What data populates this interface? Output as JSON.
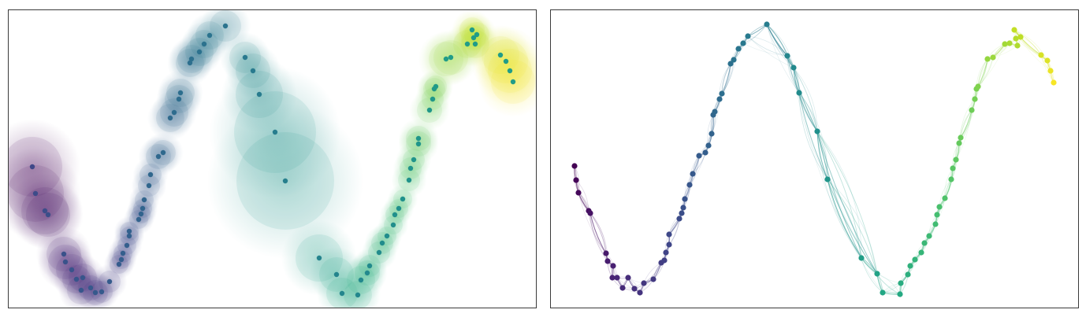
{
  "chart_data": [
    {
      "type": "scatter",
      "title": "",
      "xlabel": "",
      "ylabel": "",
      "xlim": [
        0,
        671
      ],
      "ylim": [
        380,
        0
      ],
      "grid": false,
      "legend": "none",
      "colormap": "viridis",
      "series": [
        {
          "points": [
            [
              30,
              181,
              0.0,
              38
            ],
            [
              34,
              147,
              0.02,
              36
            ],
            [
              46,
              125,
              0.04,
              30
            ],
            [
              50,
              120,
              0.05,
              28
            ],
            [
              70,
              70,
              0.08,
              22
            ],
            [
              72,
              60,
              0.09,
              22
            ],
            [
              80,
              50,
              0.1,
              20
            ],
            [
              86,
              38,
              0.11,
              18
            ],
            [
              94,
              40,
              0.12,
              18
            ],
            [
              92,
              24,
              0.13,
              18
            ],
            [
              104,
              27,
              0.14,
              16
            ],
            [
              110,
              21,
              0.15,
              16
            ],
            [
              118,
              22,
              0.16,
              14
            ],
            [
              128,
              35,
              0.17,
              14
            ],
            [
              140,
              57,
              0.18,
              12
            ],
            [
              143,
              63,
              0.19,
              12
            ],
            [
              145,
              71,
              0.2,
              12
            ],
            [
              150,
              81,
              0.21,
              12
            ],
            [
              153,
              93,
              0.22,
              12
            ],
            [
              153,
              99,
              0.23,
              12
            ],
            [
              165,
              114,
              0.24,
              12
            ],
            [
              168,
              121,
              0.25,
              12
            ],
            [
              170,
              128,
              0.26,
              12
            ],
            [
              172,
              139,
              0.27,
              12
            ],
            [
              178,
              157,
              0.28,
              14
            ],
            [
              180,
              171,
              0.29,
              14
            ],
            [
              190,
              194,
              0.3,
              16
            ],
            [
              196,
              199,
              0.31,
              16
            ],
            [
              205,
              243,
              0.32,
              18
            ],
            [
              210,
              250,
              0.33,
              18
            ],
            [
              216,
              267,
              0.34,
              18
            ],
            [
              218,
              275,
              0.35,
              18
            ],
            [
              230,
              313,
              0.36,
              18
            ],
            [
              232,
              318,
              0.37,
              18
            ],
            [
              242,
              327,
              0.38,
              18
            ],
            [
              248,
              337,
              0.39,
              18
            ],
            [
              255,
              348,
              0.4,
              18
            ],
            [
              275,
              360,
              0.41,
              20
            ],
            [
              300,
              320,
              0.46,
              20
            ],
            [
              310,
              303,
              0.47,
              22
            ],
            [
              318,
              273,
              0.48,
              30
            ],
            [
              338,
              225,
              0.5,
              52
            ],
            [
              351,
              163,
              0.52,
              62
            ],
            [
              394,
              65,
              0.56,
              30
            ],
            [
              416,
              44,
              0.58,
              22
            ],
            [
              423,
              20,
              0.6,
              20
            ],
            [
              443,
              18,
              0.61,
              18
            ],
            [
              447,
              37,
              0.62,
              18
            ],
            [
              455,
              46,
              0.63,
              16
            ],
            [
              458,
              55,
              0.64,
              14
            ],
            [
              470,
              72,
              0.65,
              14
            ],
            [
              474,
              84,
              0.66,
              14
            ],
            [
              480,
              93,
              0.67,
              12
            ],
            [
              488,
              107,
              0.68,
              12
            ],
            [
              490,
              120,
              0.69,
              12
            ],
            [
              495,
              128,
              0.7,
              12
            ],
            [
              500,
              140,
              0.71,
              12
            ],
            [
              508,
              164,
              0.72,
              14
            ],
            [
              510,
              179,
              0.73,
              14
            ],
            [
              514,
              190,
              0.74,
              14
            ],
            [
              520,
              210,
              0.75,
              16
            ],
            [
              520,
              217,
              0.76,
              16
            ],
            [
              534,
              253,
              0.78,
              16
            ],
            [
              538,
              267,
              0.79,
              14
            ],
            [
              540,
              280,
              0.8,
              14
            ],
            [
              542,
              283,
              0.81,
              14
            ],
            [
              555,
              318,
              0.84,
              22
            ],
            [
              561,
              320,
              0.85,
              22
            ],
            [
              582,
              337,
              0.87,
              18
            ],
            [
              592,
              337,
              0.88,
              18
            ],
            [
              590,
              345,
              0.89,
              16
            ],
            [
              594,
              349,
              0.9,
              16
            ],
            [
              588,
              355,
              0.91,
              16
            ],
            [
              624,
              323,
              0.94,
              24
            ],
            [
              631,
              315,
              0.96,
              28
            ],
            [
              636,
              303,
              0.97,
              28
            ],
            [
              640,
              289,
              0.99,
              28
            ]
          ]
        }
      ]
    },
    {
      "type": "line",
      "title": "",
      "xlabel": "",
      "ylabel": "",
      "xlim": [
        0,
        671
      ],
      "ylim": [
        380,
        0
      ],
      "grid": false,
      "legend": "none",
      "colormap": "viridis",
      "series": [
        {
          "points": [
            [
              30,
              182,
              0.0
            ],
            [
              32,
              164,
              0.01
            ],
            [
              35,
              148,
              0.02
            ],
            [
              48,
              125,
              0.04
            ],
            [
              50,
              122,
              0.05
            ],
            [
              70,
              71,
              0.07
            ],
            [
              72,
              61,
              0.08
            ],
            [
              79,
              55,
              0.09
            ],
            [
              78,
              40,
              0.1
            ],
            [
              84,
              40,
              0.11
            ],
            [
              91,
              27,
              0.12
            ],
            [
              98,
              40,
              0.13
            ],
            [
              106,
              26,
              0.14
            ],
            [
              113,
              21,
              0.15
            ],
            [
              118,
              33,
              0.16
            ],
            [
              130,
              38,
              0.17
            ],
            [
              140,
              59,
              0.18
            ],
            [
              144,
              62,
              0.19
            ],
            [
              146,
              72,
              0.2
            ],
            [
              150,
              82,
              0.21
            ],
            [
              150,
              95,
              0.22
            ],
            [
              163,
              115,
              0.23
            ],
            [
              166,
              122,
              0.24
            ],
            [
              168,
              129,
              0.25
            ],
            [
              170,
              140,
              0.26
            ],
            [
              176,
              158,
              0.27
            ],
            [
              180,
              172,
              0.28
            ],
            [
              188,
              195,
              0.29
            ],
            [
              196,
              199,
              0.3
            ],
            [
              200,
              208,
              0.31
            ],
            [
              204,
              223,
              0.32
            ],
            [
              206,
              247,
              0.33
            ],
            [
              208,
              251,
              0.34
            ],
            [
              214,
              267,
              0.35
            ],
            [
              217,
              274,
              0.36
            ],
            [
              228,
              312,
              0.37
            ],
            [
              232,
              317,
              0.38
            ],
            [
              238,
              331,
              0.39
            ],
            [
              244,
              338,
              0.4
            ],
            [
              250,
              347,
              0.41
            ],
            [
              274,
              362,
              0.42
            ],
            [
              300,
              322,
              0.46
            ],
            [
              308,
              307,
              0.47
            ],
            [
              315,
              275,
              0.48
            ],
            [
              338,
              226,
              0.5
            ],
            [
              351,
              165,
              0.52
            ],
            [
              394,
              65,
              0.56
            ],
            [
              414,
              45,
              0.58
            ],
            [
              421,
              21,
              0.6
            ],
            [
              443,
              19,
              0.61
            ],
            [
              444,
              33,
              0.62
            ],
            [
              453,
              44,
              0.63
            ],
            [
              456,
              55,
              0.64
            ],
            [
              462,
              63,
              0.65
            ],
            [
              470,
              72,
              0.66
            ],
            [
              474,
              84,
              0.67
            ],
            [
              480,
              93,
              0.68
            ],
            [
              488,
              108,
              0.69
            ],
            [
              490,
              120,
              0.7
            ],
            [
              493,
              130,
              0.71
            ],
            [
              500,
              141,
              0.72
            ],
            [
              508,
              165,
              0.73
            ],
            [
              510,
              179,
              0.74
            ],
            [
              514,
              190,
              0.75
            ],
            [
              518,
              211,
              0.76
            ],
            [
              520,
              218,
              0.77
            ],
            [
              534,
              253,
              0.78
            ],
            [
              538,
              267,
              0.79
            ],
            [
              540,
              280,
              0.8
            ],
            [
              542,
              283,
              0.81
            ],
            [
              554,
              318,
              0.84
            ],
            [
              561,
              320,
              0.85
            ],
            [
              576,
              337,
              0.86
            ],
            [
              582,
              338,
              0.87
            ],
            [
              592,
              335,
              0.88
            ],
            [
              590,
              344,
              0.89
            ],
            [
              596,
              346,
              0.9
            ],
            [
              588,
              355,
              0.91
            ],
            [
              622,
              323,
              0.94
            ],
            [
              630,
              316,
              0.95
            ],
            [
              634,
              303,
              0.97
            ],
            [
              638,
              288,
              0.99
            ]
          ]
        }
      ]
    }
  ]
}
